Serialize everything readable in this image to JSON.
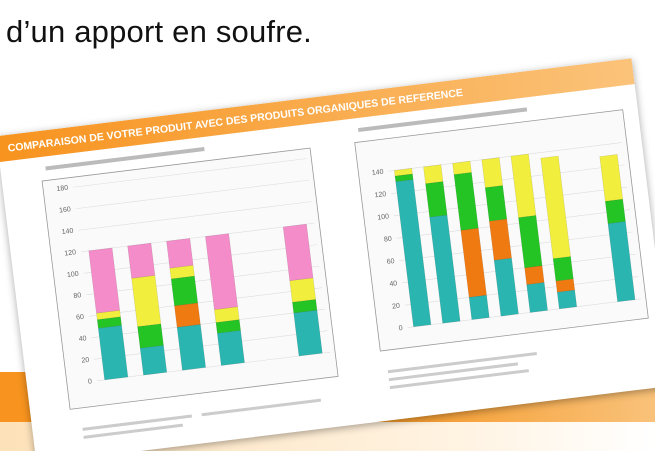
{
  "heading": "d’un apport en soufre.",
  "card": {
    "title": "COMPARAISON DE VOTRE PRODUIT AVEC DES PRODUITS ORGANIQUES DE REFERENCE",
    "charts": [
      {
        "type": "bar",
        "ylim": [
          0,
          180
        ],
        "yticks": [
          0,
          20,
          40,
          60,
          80,
          100,
          120,
          140,
          160,
          180
        ],
        "series": [
          {
            "color": "#2bb5b0",
            "values": [
              48,
              25,
              40,
              30,
              null,
              40
            ]
          },
          {
            "color": "#f07a12",
            "values": [
              0,
              0,
              20,
              0,
              null,
              0
            ]
          },
          {
            "color": "#25c425",
            "values": [
              8,
              20,
              25,
              10,
              null,
              10
            ]
          },
          {
            "color": "#f2ee3e",
            "values": [
              6,
              45,
              10,
              12,
              null,
              20
            ]
          },
          {
            "color": "#f38cc8",
            "values": [
              58,
              30,
              25,
              68,
              null,
              50
            ]
          }
        ]
      },
      {
        "type": "bar",
        "ylim": [
          0,
          160
        ],
        "yticks": [
          0,
          20,
          40,
          60,
          80,
          100,
          120,
          140
        ],
        "series": [
          {
            "color": "#2bb5b0",
            "values": [
              130,
              95,
              20,
              50,
              25,
              15,
              null,
              70
            ]
          },
          {
            "color": "#f07a12",
            "values": [
              0,
              0,
              60,
              35,
              15,
              10,
              null,
              0
            ]
          },
          {
            "color": "#25c425",
            "values": [
              5,
              30,
              50,
              30,
              45,
              20,
              null,
              20
            ]
          },
          {
            "color": "#f2ee3e",
            "values": [
              5,
              15,
              10,
              25,
              55,
              90,
              null,
              40
            ]
          }
        ]
      }
    ]
  }
}
